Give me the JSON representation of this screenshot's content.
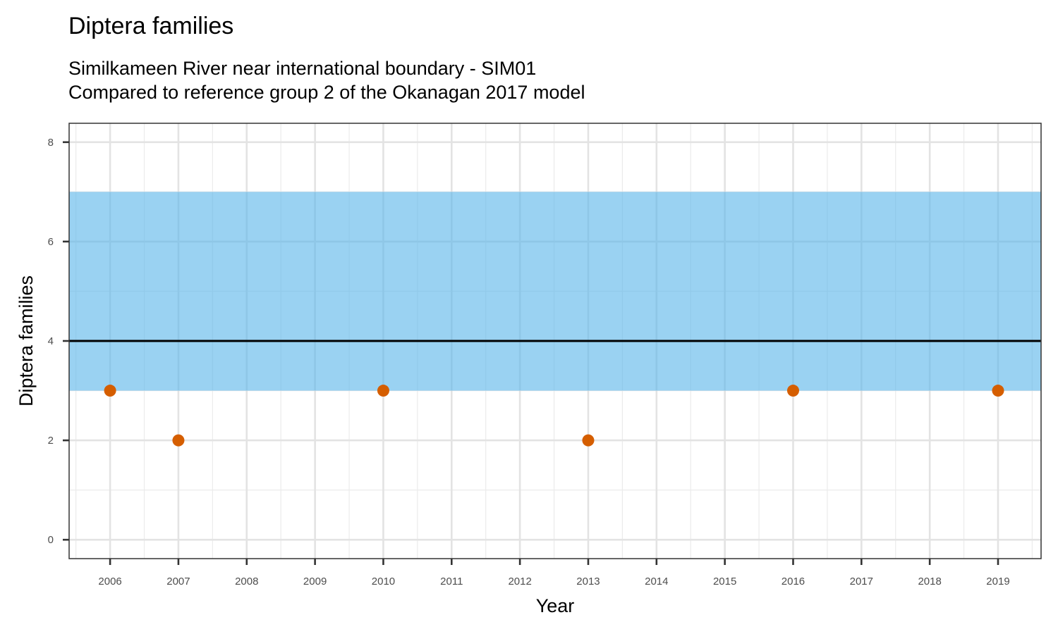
{
  "chart_data": {
    "type": "scatter",
    "title": "Diptera families",
    "subtitle_lines": [
      "Similkameen River near international boundary - SIM01",
      "Compared to reference group 2 of the Okanagan 2017 model"
    ],
    "xlabel": "Year",
    "ylabel": "Diptera families",
    "x_ticks": [
      2006,
      2007,
      2008,
      2009,
      2010,
      2011,
      2012,
      2013,
      2014,
      2015,
      2016,
      2017,
      2018,
      2019
    ],
    "y_ticks": [
      0,
      2,
      4,
      6,
      8
    ],
    "xlim": [
      2005.4,
      2019.63
    ],
    "ylim": [
      -0.38,
      8.38
    ],
    "reference_band": {
      "ymin": 3,
      "ymax": 7,
      "color": "#56B4E9"
    },
    "reference_line": {
      "y": 4,
      "color": "#000000"
    },
    "points": {
      "color": "#D55E00",
      "x": [
        2006,
        2007,
        2010,
        2013,
        2016,
        2019
      ],
      "y": [
        3,
        2,
        3,
        2,
        3,
        3
      ]
    },
    "grid": true
  }
}
